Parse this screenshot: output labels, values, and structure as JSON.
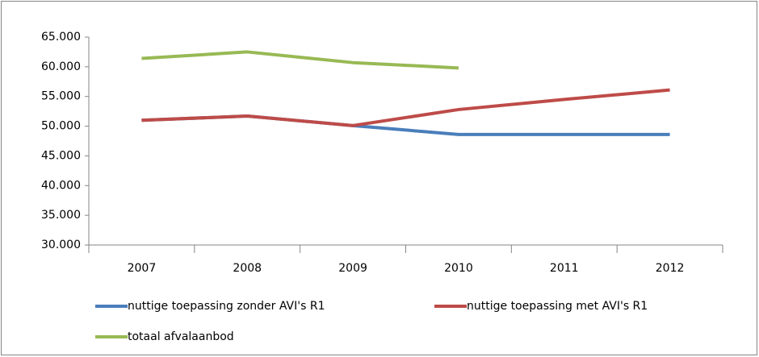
{
  "chart_data": {
    "type": "line",
    "categories": [
      "2007",
      "2008",
      "2009",
      "2010",
      "2011",
      "2012"
    ],
    "series": [
      {
        "name": "nuttige toepassing zonder AVI's R1",
        "color": "#4a7ebb",
        "values": [
          51000,
          51700,
          50100,
          48600,
          48600,
          48600
        ]
      },
      {
        "name": "nuttige toepassing met AVI's R1",
        "color": "#be4b48",
        "values": [
          51000,
          51700,
          50100,
          52800,
          54500,
          56100
        ]
      },
      {
        "name": "totaal afvalaanbod",
        "color": "#98b954",
        "values": [
          61400,
          62500,
          60700,
          59800,
          null,
          null
        ]
      }
    ],
    "ylim": [
      30000,
      65000
    ],
    "yticks": [
      {
        "value": 30000,
        "label": "30.000"
      },
      {
        "value": 35000,
        "label": "35.000"
      },
      {
        "value": 40000,
        "label": "40.000"
      },
      {
        "value": 45000,
        "label": "45.000"
      },
      {
        "value": 50000,
        "label": "50.000"
      },
      {
        "value": 55000,
        "label": "55.000"
      },
      {
        "value": 60000,
        "label": "60.000"
      },
      {
        "value": 65000,
        "label": "65.000"
      }
    ],
    "grid": false
  }
}
